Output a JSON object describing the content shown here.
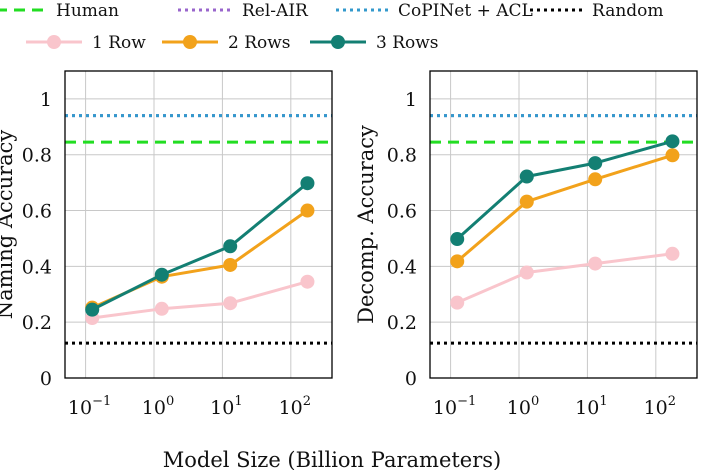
{
  "legend": {
    "entries": [
      {
        "id": "human",
        "label": "Human",
        "color": "#22dd22",
        "style": "dashed"
      },
      {
        "id": "rel-air",
        "label": "Rel-AIR",
        "color": "#9966cc",
        "style": "dotted"
      },
      {
        "id": "copinet",
        "label": "CoPINet + ACL",
        "color": "#3399cc",
        "style": "dotted"
      },
      {
        "id": "random",
        "label": "Random",
        "color": "#000000",
        "style": "dotted"
      },
      {
        "id": "row1",
        "label": "1 Row",
        "color": "#f9c5cc",
        "style": "marker-line"
      },
      {
        "id": "row2",
        "label": "2 Rows",
        "color": "#f2a21b",
        "style": "marker-line"
      },
      {
        "id": "row3",
        "label": "3 Rows",
        "color": "#137f73",
        "style": "marker-line"
      }
    ]
  },
  "shared_xlabel": "Model Size (Billion Parameters)",
  "chart_data": [
    {
      "type": "line",
      "id": "naming",
      "ylabel": "Naming Accuracy",
      "xscale": "log",
      "xlim": [
        0.05,
        400
      ],
      "ylim": [
        0,
        1.1
      ],
      "xticks": [
        {
          "base": "10",
          "exp": "−1",
          "value": 0.1
        },
        {
          "base": "10",
          "exp": "0",
          "value": 1
        },
        {
          "base": "10",
          "exp": "1",
          "value": 10
        },
        {
          "base": "10",
          "exp": "2",
          "value": 100
        }
      ],
      "yticks": [
        "0",
        "0.2",
        "0.4",
        "0.6",
        "0.8",
        "1"
      ],
      "ytick_values": [
        0,
        0.2,
        0.4,
        0.6,
        0.8,
        1.0
      ],
      "x": [
        0.125,
        1.3,
        13,
        175
      ],
      "series": [
        {
          "name": "1 Row",
          "color": "#f9c5cc",
          "values": [
            0.215,
            0.248,
            0.268,
            0.345
          ]
        },
        {
          "name": "2 Rows",
          "color": "#f2a21b",
          "values": [
            0.252,
            0.363,
            0.405,
            0.6
          ]
        },
        {
          "name": "3 Rows",
          "color": "#137f73",
          "values": [
            0.245,
            0.37,
            0.472,
            0.698
          ]
        }
      ],
      "hlines": [
        {
          "name": "Human",
          "color": "#22dd22",
          "style": "dashed",
          "value": 0.845
        },
        {
          "name": "Rel-AIR",
          "color": "#9966cc",
          "style": "dotted",
          "value": 0.94
        },
        {
          "name": "CoPINet + ACL",
          "color": "#3399cc",
          "style": "dotted",
          "value": 0.94
        },
        {
          "name": "Random",
          "color": "#000000",
          "style": "dotted",
          "value": 0.125
        }
      ]
    },
    {
      "type": "line",
      "id": "decomp",
      "ylabel": "Decomp. Accuracy",
      "xscale": "log",
      "xlim": [
        0.05,
        400
      ],
      "ylim": [
        0,
        1.1
      ],
      "xticks": [
        {
          "base": "10",
          "exp": "−1",
          "value": 0.1
        },
        {
          "base": "10",
          "exp": "0",
          "value": 1
        },
        {
          "base": "10",
          "exp": "1",
          "value": 10
        },
        {
          "base": "10",
          "exp": "2",
          "value": 100
        }
      ],
      "yticks": [
        "0",
        "0.2",
        "0.4",
        "0.6",
        "0.8",
        "1"
      ],
      "ytick_values": [
        0,
        0.2,
        0.4,
        0.6,
        0.8,
        1.0
      ],
      "x": [
        0.125,
        1.3,
        13,
        175
      ],
      "series": [
        {
          "name": "1 Row",
          "color": "#f9c5cc",
          "values": [
            0.27,
            0.378,
            0.41,
            0.445
          ]
        },
        {
          "name": "2 Rows",
          "color": "#f2a21b",
          "values": [
            0.418,
            0.632,
            0.712,
            0.798
          ]
        },
        {
          "name": "3 Rows",
          "color": "#137f73",
          "values": [
            0.498,
            0.722,
            0.77,
            0.848
          ]
        }
      ],
      "hlines": [
        {
          "name": "Human",
          "color": "#22dd22",
          "style": "dashed",
          "value": 0.845
        },
        {
          "name": "Rel-AIR",
          "color": "#9966cc",
          "style": "dotted",
          "value": 0.94
        },
        {
          "name": "CoPINet + ACL",
          "color": "#3399cc",
          "style": "dotted",
          "value": 0.94
        },
        {
          "name": "Random",
          "color": "#000000",
          "style": "dotted",
          "value": 0.125
        }
      ]
    }
  ]
}
